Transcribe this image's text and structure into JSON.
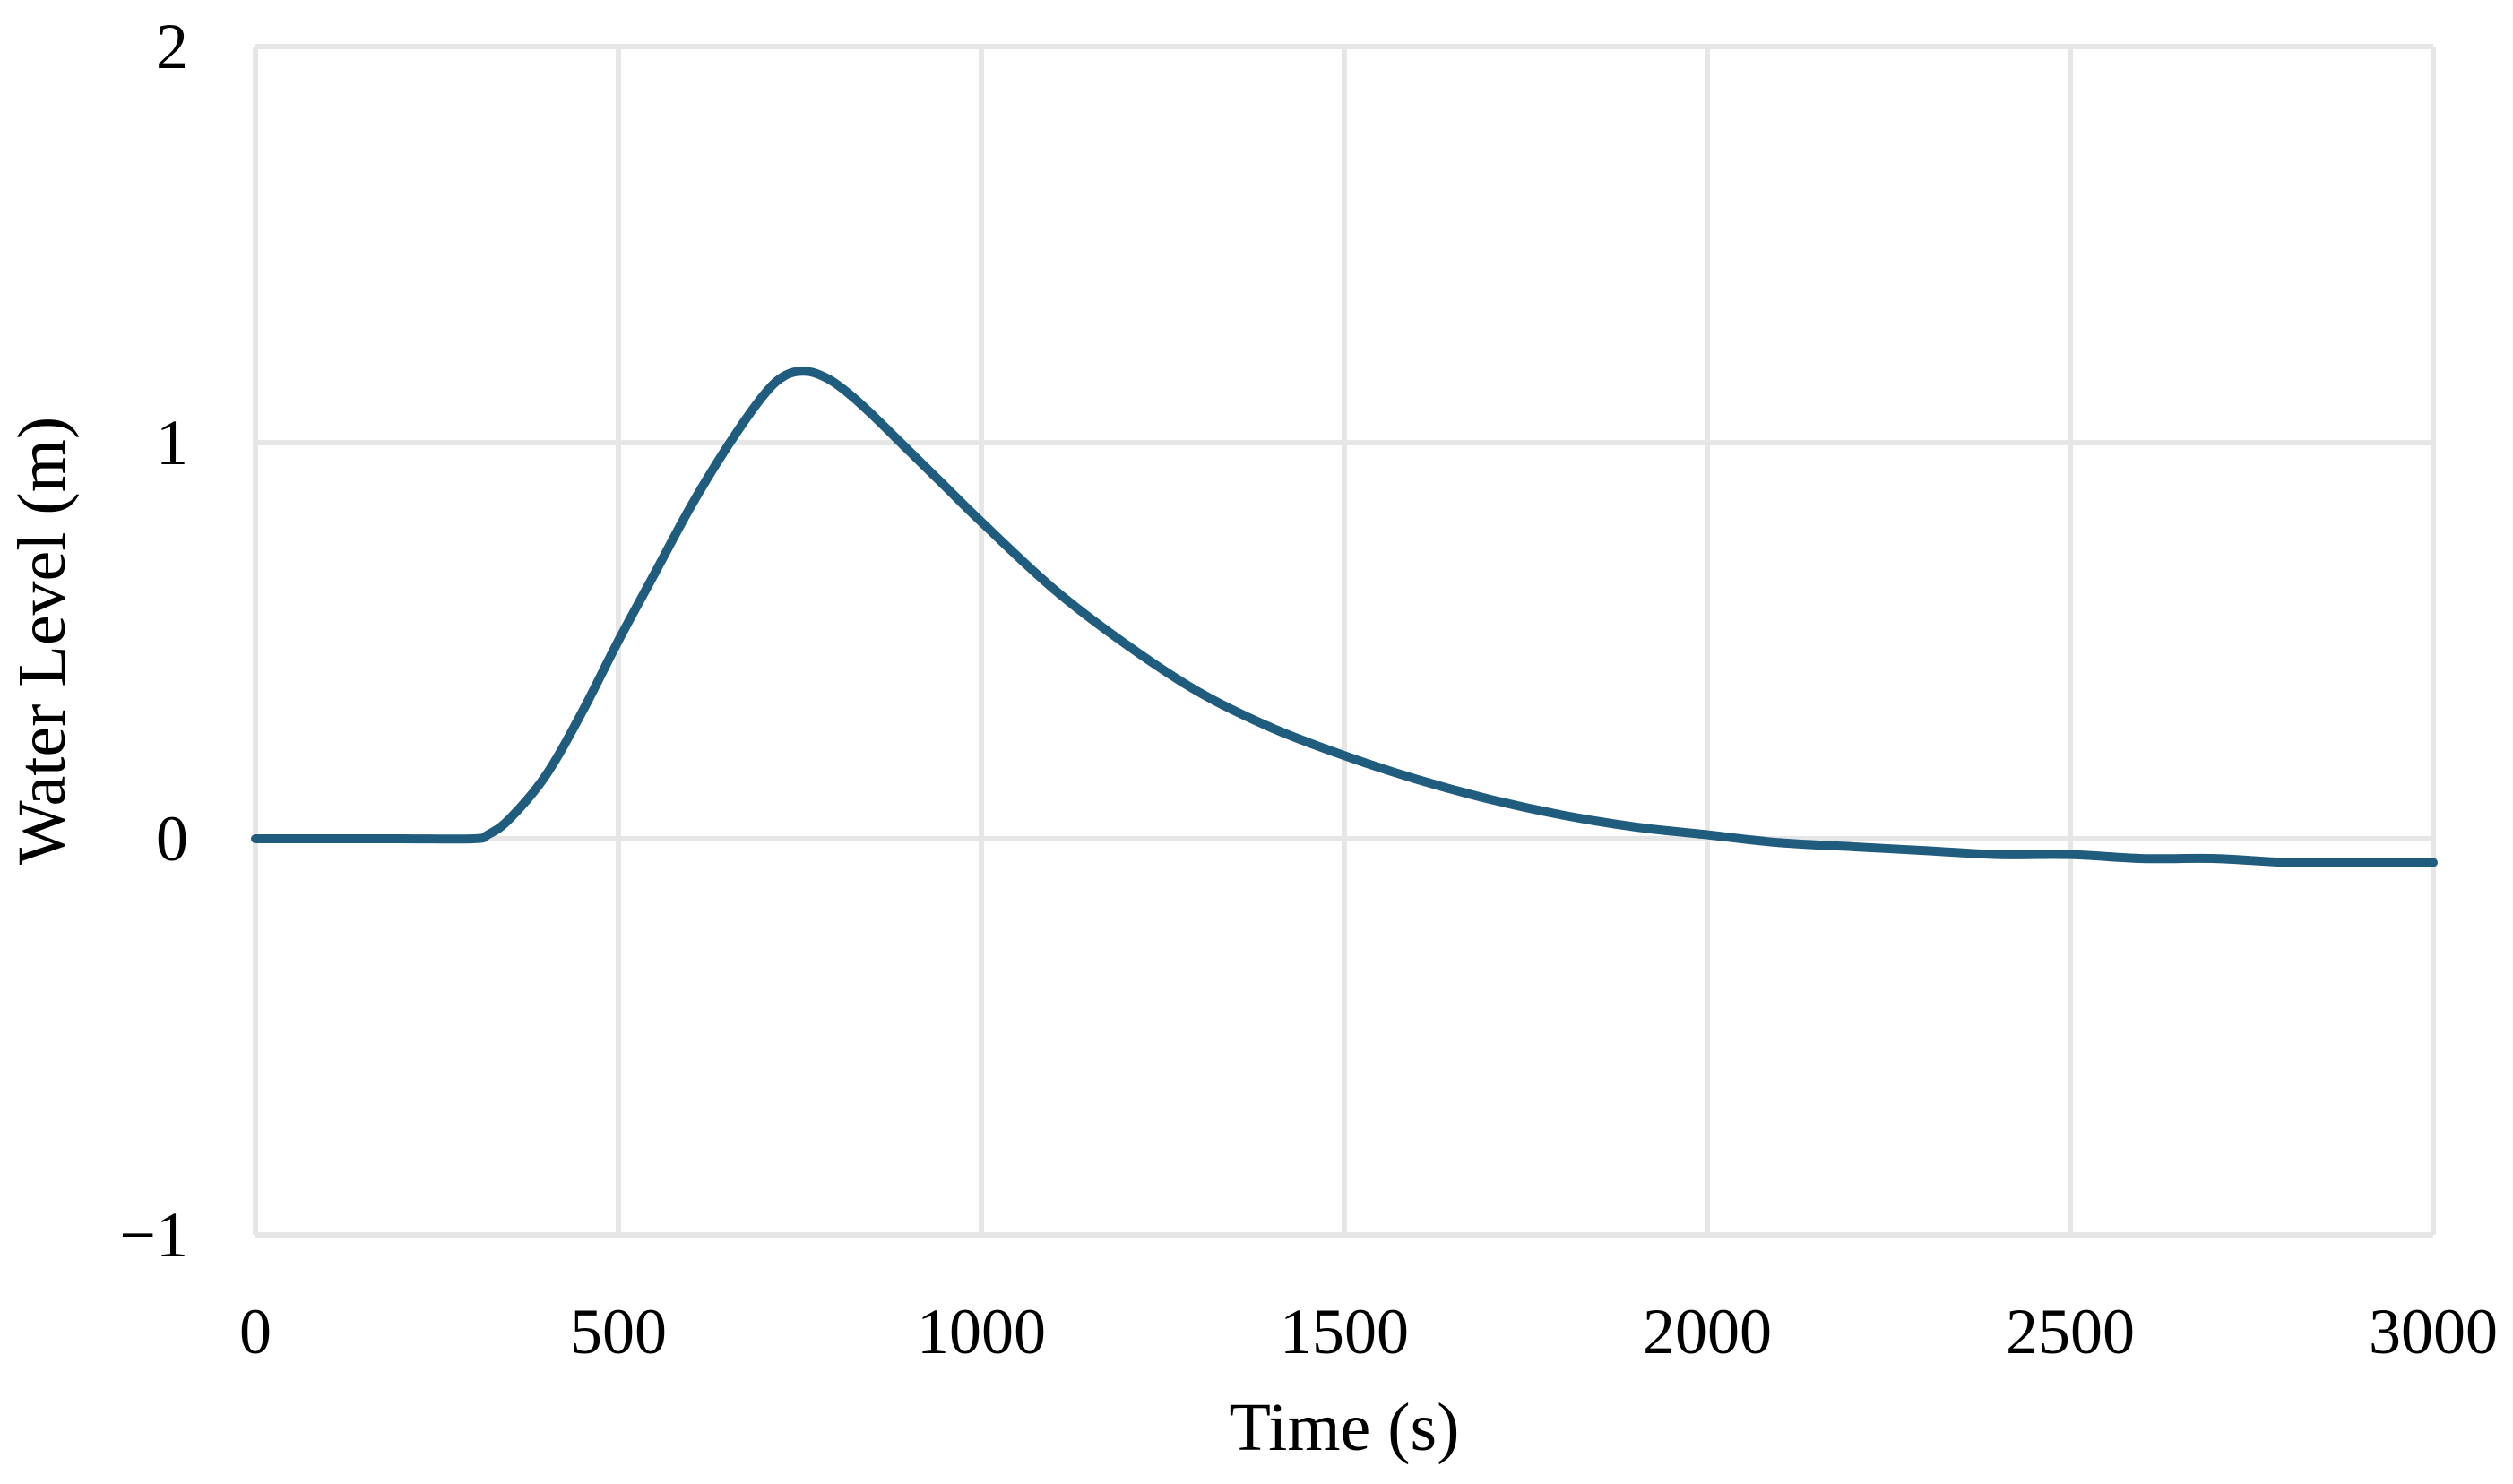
{
  "chart_data": {
    "type": "line",
    "title": "",
    "xlabel": "Time (s)",
    "ylabel": "Water Level (m)",
    "xlim": [
      0,
      3000
    ],
    "ylim": [
      -1,
      2
    ],
    "xticks": [
      0,
      500,
      1000,
      1500,
      2000,
      2500,
      3000
    ],
    "yticks": [
      -1,
      0,
      1,
      2
    ],
    "xtick_labels": [
      "0",
      "500",
      "1000",
      "1500",
      "2000",
      "2500",
      "3000"
    ],
    "ytick_labels": [
      "−1",
      "0",
      "1",
      "2"
    ],
    "grid": true,
    "legend": "none",
    "series": [
      {
        "name": "Water Level",
        "color": "#1f5c7d",
        "x": [
          0,
          100,
          200,
          300,
          320,
          350,
          400,
          450,
          500,
          550,
          600,
          650,
          700,
          730,
          760,
          790,
          820,
          850,
          900,
          950,
          1000,
          1100,
          1200,
          1300,
          1400,
          1500,
          1600,
          1700,
          1800,
          1900,
          2000,
          2100,
          2200,
          2300,
          2400,
          2500,
          2600,
          2700,
          2800,
          2900,
          3000
        ],
        "y": [
          0,
          0,
          0,
          0,
          0.01,
          0.05,
          0.16,
          0.32,
          0.5,
          0.67,
          0.84,
          0.99,
          1.12,
          1.17,
          1.18,
          1.16,
          1.12,
          1.07,
          0.98,
          0.89,
          0.8,
          0.63,
          0.49,
          0.37,
          0.28,
          0.21,
          0.15,
          0.1,
          0.06,
          0.03,
          0.01,
          -0.01,
          -0.02,
          -0.03,
          -0.04,
          -0.04,
          -0.05,
          -0.05,
          -0.06,
          -0.06,
          -0.06
        ]
      }
    ]
  }
}
